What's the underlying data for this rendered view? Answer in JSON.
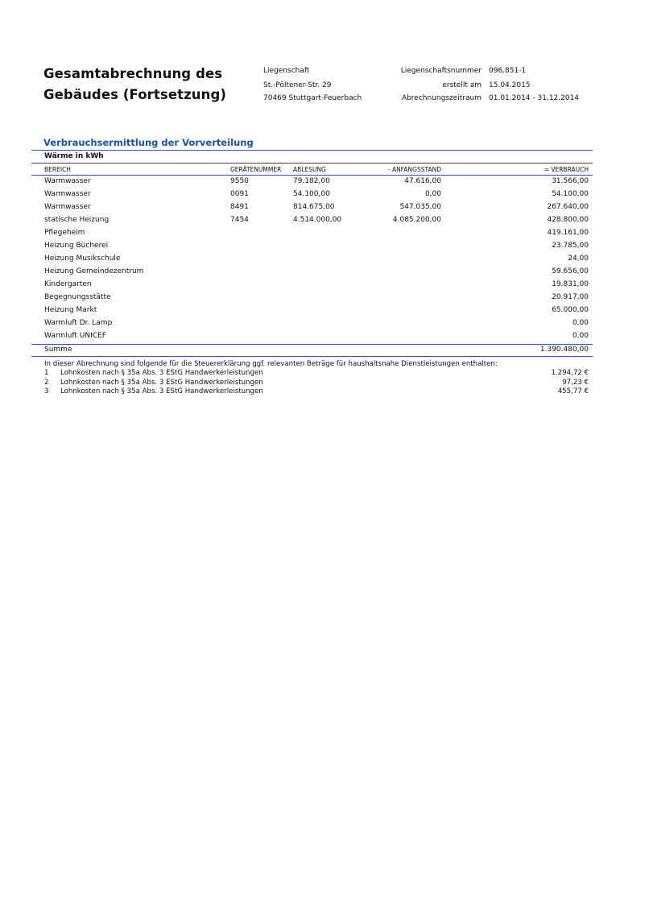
{
  "header": {
    "title_line1": "Gesamtabrechnung des",
    "title_line2": "Gebäudes (Fortsetzung)",
    "property_label": "Liegenschaft",
    "address_street": "St.-Pöltener-Str. 29",
    "address_city": "70469 Stuttgart-Feuerbach",
    "meta": [
      {
        "label": "Liegenschaftsnummer",
        "value": "096.851-1"
      },
      {
        "label": "erstellt am",
        "value": "15.04.2015"
      },
      {
        "label": "Abrechnungszeitraum",
        "value": "01.01.2014 - 31.12.2014"
      }
    ]
  },
  "section": {
    "title": "Verbrauchsermittlung der Vorverteilung",
    "subtitle": "Wärme in kWh",
    "columns": [
      "BEREICH",
      "GERÄTENUMMER",
      "ABLESUNG",
      "- ANFANGSSTAND",
      "= VERBRAUCH"
    ],
    "rows": [
      {
        "bereich": "Warmwasser",
        "geraet": "9550",
        "ablesung": "79.182,00",
        "anfang": "47.616,00",
        "verbrauch": "31.566,00"
      },
      {
        "bereich": "Warmwasser",
        "geraet": "0091",
        "ablesung": "54.100,00",
        "anfang": "0,00",
        "verbrauch": "54.100,00"
      },
      {
        "bereich": "Warmwasser",
        "geraet": "8491",
        "ablesung": "814.675,00",
        "anfang": "547.035,00",
        "verbrauch": "267.640,00"
      },
      {
        "bereich": "statische Heizung",
        "geraet": "7454",
        "ablesung": "4.514.000,00",
        "anfang": "4.085.200,00",
        "verbrauch": "428.800,00"
      },
      {
        "bereich": "Pflegeheim",
        "geraet": "",
        "ablesung": "",
        "anfang": "",
        "verbrauch": "419.161,00"
      },
      {
        "bereich": "Heizung Bücherei",
        "geraet": "",
        "ablesung": "",
        "anfang": "",
        "verbrauch": "23.785,00"
      },
      {
        "bereich": "Heizung Musikschule",
        "geraet": "",
        "ablesung": "",
        "anfang": "",
        "verbrauch": "24,00"
      },
      {
        "bereich": "Heizung Gemeindezentrum",
        "geraet": "",
        "ablesung": "",
        "anfang": "",
        "verbrauch": "59.656,00"
      },
      {
        "bereich": "Kindergarten",
        "geraet": "",
        "ablesung": "",
        "anfang": "",
        "verbrauch": "19.831,00"
      },
      {
        "bereich": "Begegnungsstätte",
        "geraet": "",
        "ablesung": "",
        "anfang": "",
        "verbrauch": "20.917,00"
      },
      {
        "bereich": "Heizung Markt",
        "geraet": "",
        "ablesung": "",
        "anfang": "",
        "verbrauch": "65.000,00"
      },
      {
        "bereich": "Warmluft Dr. Lamp",
        "geraet": "",
        "ablesung": "",
        "anfang": "",
        "verbrauch": "0,00"
      },
      {
        "bereich": "Warmluft UNICEF",
        "geraet": "",
        "ablesung": "",
        "anfang": "",
        "verbrauch": "0,00"
      }
    ],
    "sum_label": "Summe",
    "sum_value": "1.390.480,00"
  },
  "tax": {
    "intro": "In dieser Abrechnung sind folgende für die Steuererklärung ggf. relevanten Beträge für haushaltsnahe Dienstleistungen enthalten:",
    "items": [
      {
        "no": "1",
        "text": "Lohnkosten nach § 35a Abs. 3 EStG Handwerkerleistungen",
        "amount": "1.294,72 €"
      },
      {
        "no": "2",
        "text": "Lohnkosten nach § 35a Abs. 3 EStG Handwerkerleistungen",
        "amount": "97,23 €"
      },
      {
        "no": "3",
        "text": "Lohnkosten nach § 35a Abs. 3 EStG Handwerkerleistungen",
        "amount": "455,77 €"
      }
    ]
  }
}
